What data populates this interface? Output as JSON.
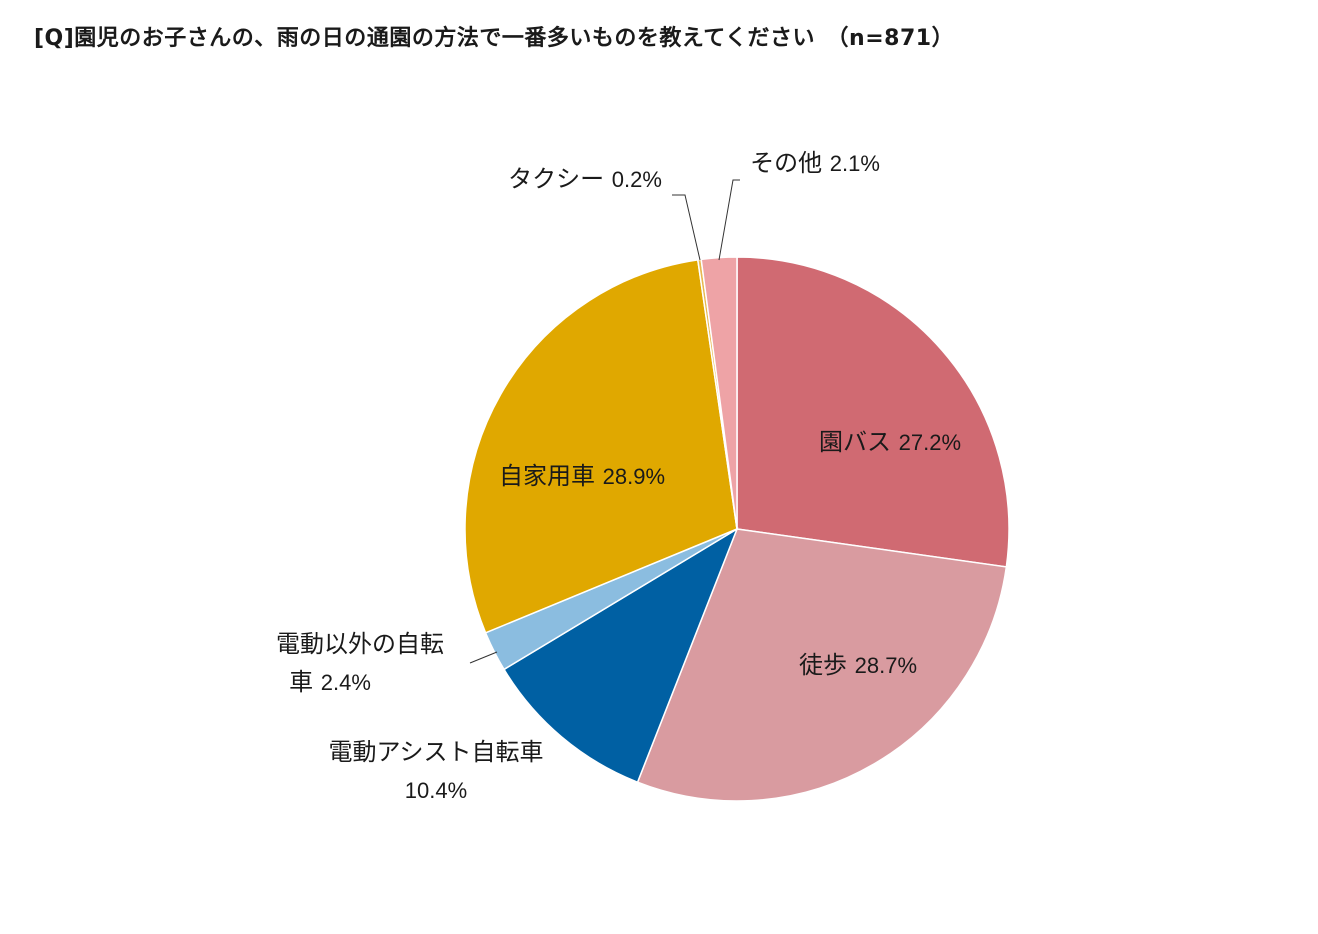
{
  "chart_data": {
    "type": "pie",
    "title": "[Q]園児のお子さんの、雨の日の通園の方法で一番多いものを教えてください　（n=871）",
    "start_angle_deg": 0,
    "direction": "clockwise",
    "slices": [
      {
        "label": "園バス",
        "value": 27.2,
        "display": "27.2%",
        "color": "#d06a72"
      },
      {
        "label": "徒歩",
        "value": 28.7,
        "display": "28.7%",
        "color": "#d99ba0"
      },
      {
        "label": "電動アシスト自転車",
        "value": 10.4,
        "display": "10.4%",
        "color": "#0060a3"
      },
      {
        "label": "電動以外の自転車",
        "label_lines": [
          "電動以外の自転",
          "車"
        ],
        "value": 2.4,
        "display": "2.4%",
        "color": "#8bbde0"
      },
      {
        "label": "自家用車",
        "value": 28.9,
        "display": "28.9%",
        "color": "#e0a800"
      },
      {
        "label": "タクシー",
        "value": 0.2,
        "display": "0.2%",
        "color": "#e8b850"
      },
      {
        "label": "その他",
        "value": 2.1,
        "display": "2.1%",
        "color": "#eea3a6"
      }
    ]
  }
}
